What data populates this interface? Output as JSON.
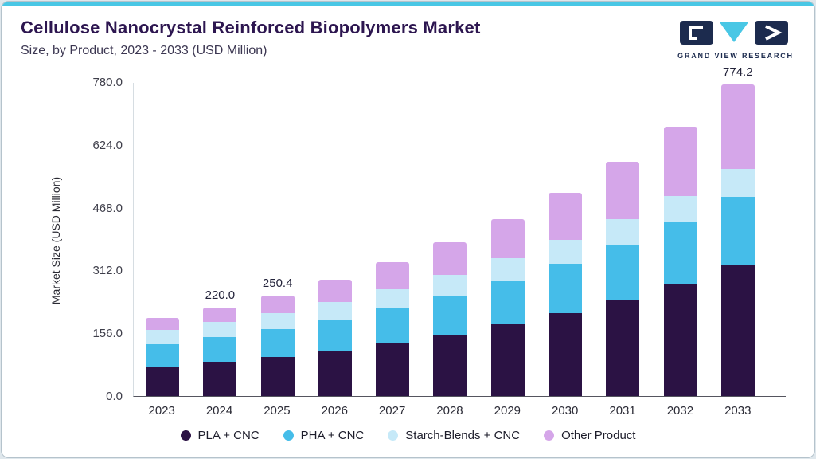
{
  "page": {
    "accent_color": "#49C7E5",
    "card_bg": "#ffffff",
    "outer_bg": "#dfe7ec",
    "title_color": "#2D1650"
  },
  "header": {
    "title": "Cellulose Nanocrystal Reinforced Biopolymers Market",
    "subtitle": "Size, by Product, 2023 - 2033 (USD Million)"
  },
  "logo": {
    "text": "GRAND VIEW RESEARCH",
    "navy": "#1C2B4E",
    "cyan": "#49C7E5"
  },
  "chart_data": {
    "type": "bar",
    "stacked": true,
    "title": "Cellulose Nanocrystal Reinforced Biopolymers Market Size, by Product, 2023 - 2033 (USD Million)",
    "xlabel": "",
    "ylabel": "Market Size (USD Million)",
    "ylim": [
      0,
      780
    ],
    "ytick_labels": [
      "0.0",
      "156.0",
      "312.0",
      "468.0",
      "624.0",
      "780.0"
    ],
    "grid": false,
    "legend_position": "bottom",
    "categories": [
      "2023",
      "2024",
      "2025",
      "2026",
      "2027",
      "2028",
      "2029",
      "2030",
      "2031",
      "2032",
      "2033"
    ],
    "series": [
      {
        "name": "PLA + CNC",
        "color": "#2B1244",
        "values": [
          73.5,
          84.5,
          97.2,
          113.0,
          131.4,
          152.7,
          177.5,
          206.4,
          239.8,
          278.7,
          325.2
        ]
      },
      {
        "name": "PHA + CNC",
        "color": "#45BDE9",
        "values": [
          56.0,
          62.3,
          69.1,
          77.5,
          86.9,
          97.4,
          109.0,
          121.9,
          136.2,
          152.1,
          170.3
        ]
      },
      {
        "name": "Starch-Blends + CNC",
        "color": "#C6E9F8",
        "values": [
          34.8,
          37.6,
          40.6,
          44.1,
          47.8,
          51.5,
          55.4,
          59.2,
          62.9,
          66.3,
          69.7
        ]
      },
      {
        "name": "Other Product",
        "color": "#D5A6E9",
        "values": [
          29.0,
          35.6,
          43.5,
          53.6,
          65.6,
          80.2,
          97.5,
          118.3,
          143.2,
          172.9,
          209.0
        ]
      }
    ],
    "totals": [
      193.3,
      220.0,
      250.4,
      288.2,
      331.7,
      381.8,
      439.4,
      505.8,
      582.1,
      670.0,
      774.2
    ],
    "bar_labels": {
      "2024": "220.0",
      "2025": "250.4",
      "2033": "774.2"
    }
  }
}
